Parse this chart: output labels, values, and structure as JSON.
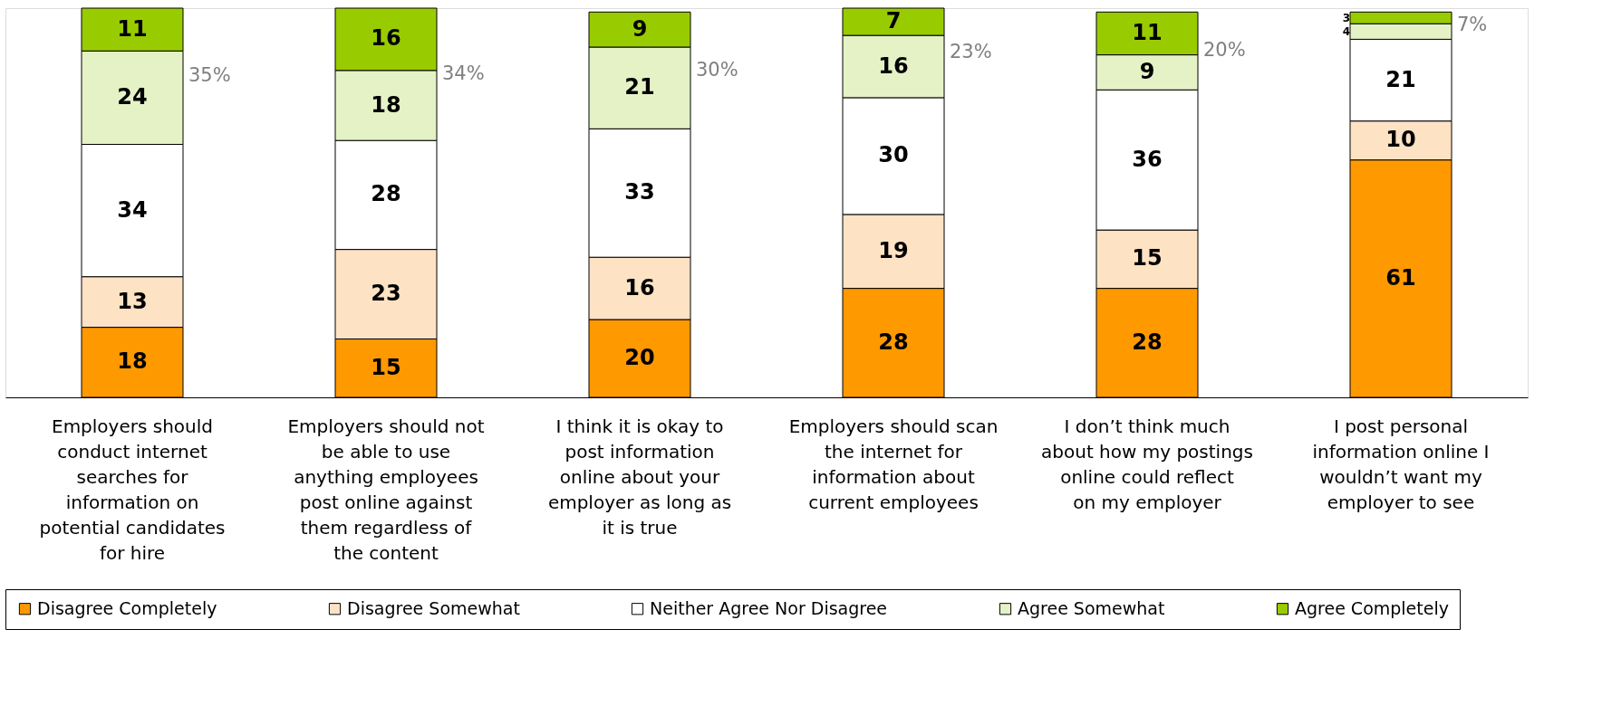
{
  "chart_data": {
    "type": "bar",
    "stacked": true,
    "data_labels": true,
    "legend": "bottom",
    "categories": [
      "Employers should conduct internet searches for information on potential candidates for hire",
      "Employers should not be able to use anything employees post online against them regardless of the content",
      "I think it is okay to post information online about your employer as long as it is true",
      "Employers should scan the internet for information about current employees",
      "I don’t think much about how my postings online could reflect on my employer",
      "I post personal information online I wouldn’t want my employer to see"
    ],
    "series": [
      {
        "name": "Disagree Completely",
        "color": "#ff9900",
        "values": [
          18,
          15,
          20,
          28,
          28,
          61
        ]
      },
      {
        "name": "Disagree Somewhat",
        "color": "#fde2c4",
        "values": [
          13,
          23,
          16,
          19,
          15,
          10
        ]
      },
      {
        "name": "Neither Agree Nor Disagree",
        "color": "#ffffff",
        "values": [
          34,
          28,
          33,
          30,
          36,
          21
        ]
      },
      {
        "name": "Agree Somewhat",
        "color": "#e4f2c6",
        "values": [
          24,
          18,
          21,
          16,
          9,
          4
        ]
      },
      {
        "name": "Agree Completely",
        "color": "#99cc00",
        "values": [
          11,
          16,
          9,
          7,
          11,
          3
        ]
      }
    ],
    "annotations": [
      "35%",
      "34%",
      "30%",
      "23%",
      "20%",
      "7%"
    ]
  }
}
